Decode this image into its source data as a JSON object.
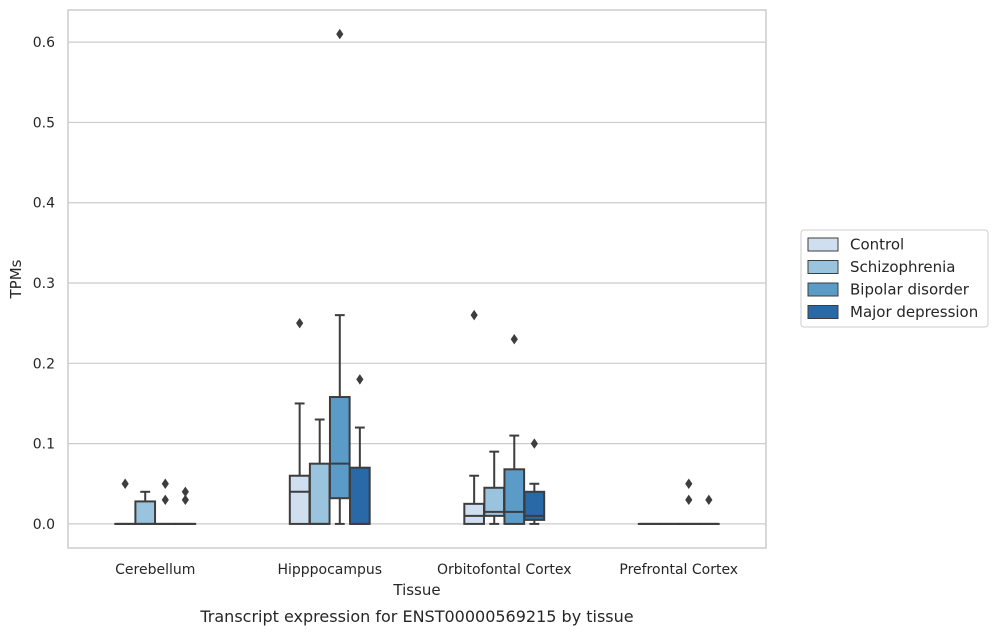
{
  "chart_data": {
    "type": "box",
    "title": "",
    "caption": "Transcript expression for ENST00000569215 by tissue",
    "xlabel": "Tissue",
    "ylabel": "TPMs",
    "ylim": [
      -0.03,
      0.64
    ],
    "yticks": [
      0.0,
      0.1,
      0.2,
      0.3,
      0.4,
      0.5,
      0.6
    ],
    "ytick_labels": [
      "0.0",
      "0.1",
      "0.2",
      "0.3",
      "0.4",
      "0.5",
      "0.6"
    ],
    "grid": "horizontal",
    "legend_position": "right",
    "categories": [
      "Cerebellum",
      "Hipppocampus",
      "Orbitofontal Cortex",
      "Prefrontal Cortex"
    ],
    "series": [
      {
        "name": "Control",
        "color": "#cfdff0",
        "boxes": [
          {
            "q1": 0.0,
            "median": 0.0,
            "q3": 0.0,
            "whisker_low": 0.0,
            "whisker_high": 0.0,
            "outliers": [
              0.05
            ]
          },
          {
            "q1": 0.0,
            "median": 0.04,
            "q3": 0.06,
            "whisker_low": 0.0,
            "whisker_high": 0.15,
            "outliers": [
              0.25
            ]
          },
          {
            "q1": 0.0,
            "median": 0.01,
            "q3": 0.025,
            "whisker_low": 0.0,
            "whisker_high": 0.06,
            "outliers": [
              0.26
            ]
          },
          {
            "q1": 0.0,
            "median": 0.0,
            "q3": 0.0,
            "whisker_low": 0.0,
            "whisker_high": 0.0,
            "outliers": []
          }
        ]
      },
      {
        "name": "Schizophrenia",
        "color": "#9ac4de",
        "boxes": [
          {
            "q1": 0.0,
            "median": 0.0,
            "q3": 0.028,
            "whisker_low": 0.0,
            "whisker_high": 0.04,
            "outliers": []
          },
          {
            "q1": 0.0,
            "median": 0.0,
            "q3": 0.075,
            "whisker_low": 0.0,
            "whisker_high": 0.13,
            "outliers": []
          },
          {
            "q1": 0.01,
            "median": 0.015,
            "q3": 0.045,
            "whisker_low": 0.0,
            "whisker_high": 0.09,
            "outliers": []
          },
          {
            "q1": 0.0,
            "median": 0.0,
            "q3": 0.0,
            "whisker_low": 0.0,
            "whisker_high": 0.0,
            "outliers": []
          }
        ]
      },
      {
        "name": "Bipolar disorder",
        "color": "#5b9bc8",
        "boxes": [
          {
            "q1": 0.0,
            "median": 0.0,
            "q3": 0.0,
            "whisker_low": 0.0,
            "whisker_high": 0.0,
            "outliers": [
              0.03,
              0.05
            ]
          },
          {
            "q1": 0.032,
            "median": 0.075,
            "q3": 0.158,
            "whisker_low": 0.0,
            "whisker_high": 0.26,
            "outliers": [
              0.61
            ]
          },
          {
            "q1": 0.0,
            "median": 0.015,
            "q3": 0.068,
            "whisker_low": 0.0,
            "whisker_high": 0.11,
            "outliers": [
              0.23
            ]
          },
          {
            "q1": 0.0,
            "median": 0.0,
            "q3": 0.0,
            "whisker_low": 0.0,
            "whisker_high": 0.0,
            "outliers": [
              0.03,
              0.05
            ]
          }
        ]
      },
      {
        "name": "Major depression",
        "color": "#2a69a8",
        "boxes": [
          {
            "q1": 0.0,
            "median": 0.0,
            "q3": 0.0,
            "whisker_low": 0.0,
            "whisker_high": 0.0,
            "outliers": [
              0.03,
              0.04
            ]
          },
          {
            "q1": 0.0,
            "median": 0.0,
            "q3": 0.07,
            "whisker_low": 0.0,
            "whisker_high": 0.12,
            "outliers": [
              0.18
            ]
          },
          {
            "q1": 0.005,
            "median": 0.01,
            "q3": 0.04,
            "whisker_low": 0.0,
            "whisker_high": 0.05,
            "outliers": [
              0.1
            ]
          },
          {
            "q1": 0.0,
            "median": 0.0,
            "q3": 0.0,
            "whisker_low": 0.0,
            "whisker_high": 0.0,
            "outliers": [
              0.03
            ]
          }
        ]
      }
    ]
  }
}
